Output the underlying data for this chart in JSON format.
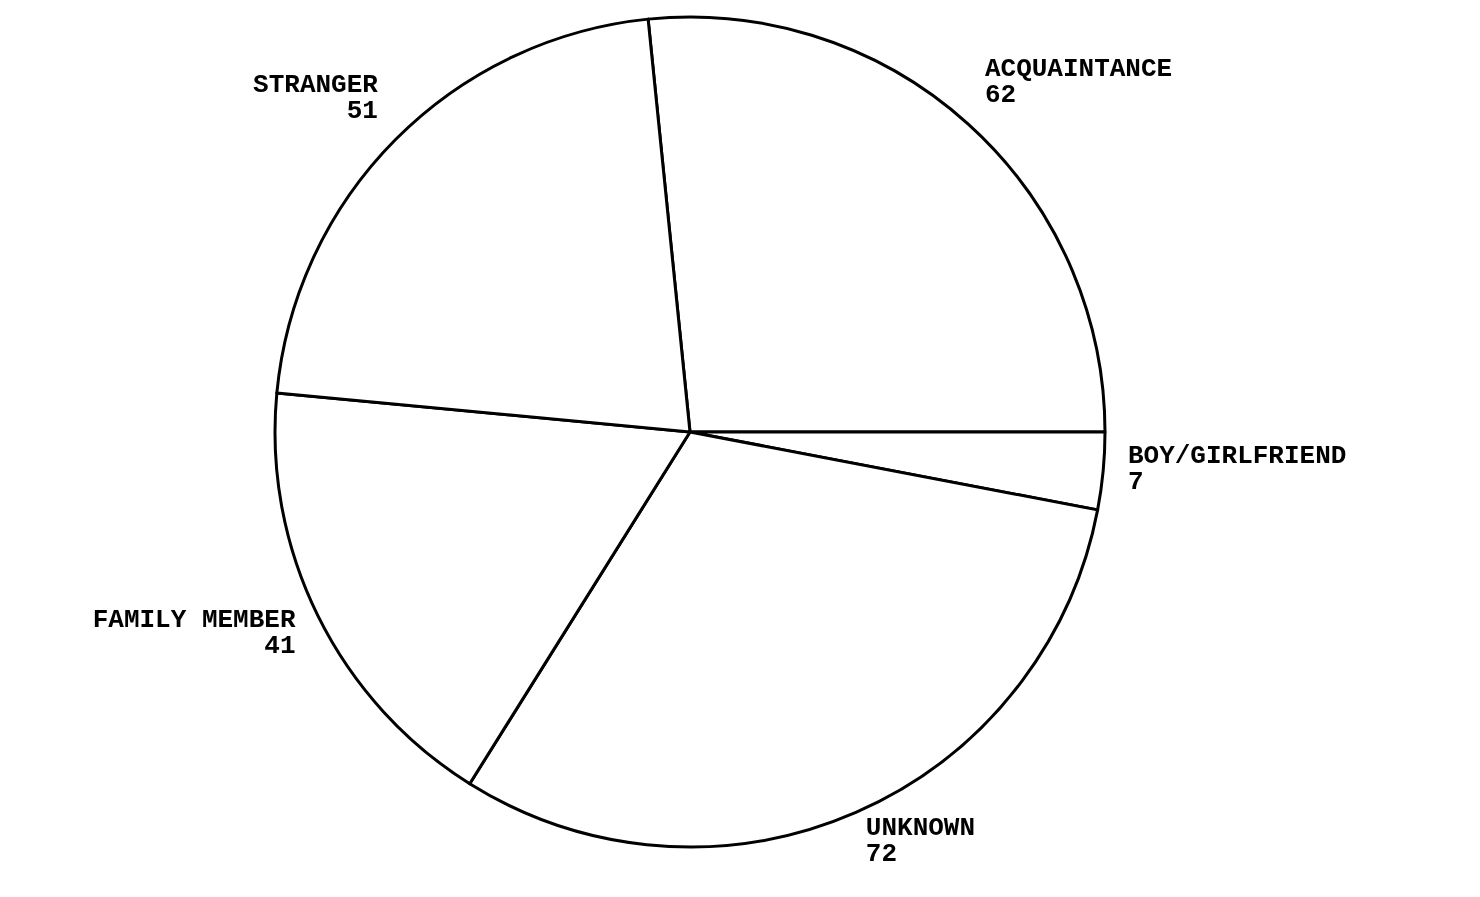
{
  "chart_data": {
    "type": "pie",
    "categories": [
      "ACQUAINTANCE",
      "BOY/GIRLFRIEND",
      "UNKNOWN",
      "FAMILY MEMBER",
      "STRANGER"
    ],
    "values": [
      62,
      7,
      72,
      41,
      51
    ],
    "colors": [
      "#ffffff",
      "#ffffff",
      "#ffffff",
      "#ffffff",
      "#ffffff"
    ],
    "data_labels": true
  }
}
